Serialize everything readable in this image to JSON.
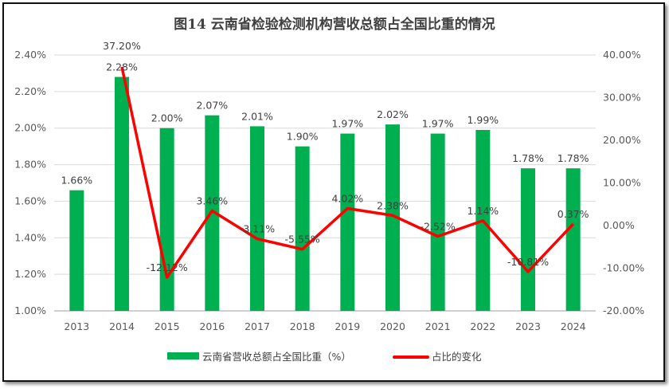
{
  "chart_data": {
    "type": "bar+line",
    "title": "图14  云南省检验检测机构营收总额占全国比重的情况",
    "categories": [
      "2013",
      "2014",
      "2015",
      "2016",
      "2017",
      "2018",
      "2019",
      "2020",
      "2021",
      "2022",
      "2023",
      "2024"
    ],
    "series": [
      {
        "name": "云南省营收总额占全国比重（%）",
        "type": "bar",
        "axis": "left",
        "color": "#00B050",
        "values": [
          1.66,
          2.28,
          2.0,
          2.07,
          2.01,
          1.9,
          1.97,
          2.02,
          1.97,
          1.99,
          1.78,
          1.78
        ],
        "labels": [
          "1.66%",
          "2.28%",
          "2.00%",
          "2.07%",
          "2.01%",
          "1.90%",
          "1.97%",
          "2.02%",
          "1.97%",
          "1.99%",
          "1.78%",
          "1.78%"
        ]
      },
      {
        "name": "占比的变化",
        "type": "line",
        "axis": "right",
        "color": "#FF0000",
        "values": [
          null,
          37.2,
          -12.12,
          3.46,
          -3.11,
          -5.55,
          4.02,
          2.38,
          -2.52,
          1.14,
          -10.81,
          0.37
        ],
        "labels": [
          "",
          "37.20%",
          "-12.12%",
          "3.46%",
          "-3.11%",
          "-5.55%",
          "4.02%",
          "2.38%",
          "-2.52%",
          "1.14%",
          "-10.81%",
          "0.37%"
        ]
      }
    ],
    "left_axis": {
      "range": [
        1.0,
        2.4
      ],
      "ticks": [
        "1.00%",
        "1.20%",
        "1.40%",
        "1.60%",
        "1.80%",
        "2.00%",
        "2.20%",
        "2.40%"
      ]
    },
    "right_axis": {
      "range": [
        -20,
        40
      ],
      "ticks": [
        "-20.00%",
        "-10.00%",
        "0.00%",
        "10.00%",
        "20.00%",
        "30.00%",
        "40.00%"
      ]
    },
    "grid": true,
    "legend": "bottom"
  }
}
